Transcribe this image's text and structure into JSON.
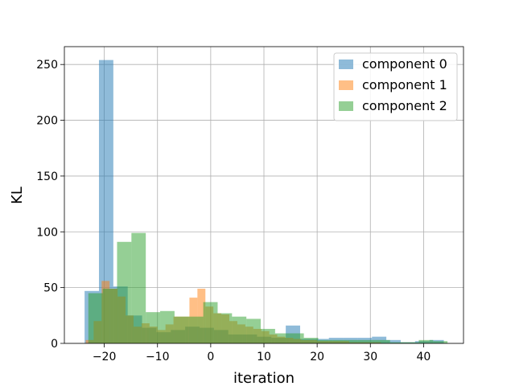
{
  "chart_data": {
    "type": "histogram",
    "title": "",
    "xlabel": "iteration",
    "ylabel": "KL",
    "xlim": [
      -27.5,
      47.5
    ],
    "ylim": [
      0,
      266
    ],
    "xticks": [
      -20,
      -10,
      0,
      10,
      20,
      30,
      40
    ],
    "xtick_labels": [
      "−20",
      "−10",
      "0",
      "10",
      "20",
      "30",
      "40"
    ],
    "yticks": [
      0,
      50,
      100,
      150,
      200,
      250
    ],
    "ytick_labels": [
      "0",
      "50",
      "100",
      "150",
      "200",
      "250"
    ],
    "grid": true,
    "legend": {
      "position": "top-right"
    },
    "series": [
      {
        "name": "component 0",
        "color": "#1f77b4",
        "alpha": 0.5,
        "bins": [
          {
            "x0": -23.7,
            "x1": -21.0,
            "value": 47
          },
          {
            "x0": -21.0,
            "x1": -18.3,
            "value": 254
          },
          {
            "x0": -18.3,
            "x1": -15.6,
            "value": 51
          },
          {
            "x0": -15.6,
            "x1": -12.9,
            "value": 25
          },
          {
            "x0": -12.9,
            "x1": -10.2,
            "value": 14
          },
          {
            "x0": -10.2,
            "x1": -7.5,
            "value": 10
          },
          {
            "x0": -7.5,
            "x1": -4.8,
            "value": 12
          },
          {
            "x0": -4.8,
            "x1": -2.1,
            "value": 15
          },
          {
            "x0": -2.1,
            "x1": 0.6,
            "value": 14
          },
          {
            "x0": 0.6,
            "x1": 3.3,
            "value": 12
          },
          {
            "x0": 3.3,
            "x1": 6.0,
            "value": 8
          },
          {
            "x0": 6.0,
            "x1": 8.7,
            "value": 8
          },
          {
            "x0": 8.7,
            "x1": 11.4,
            "value": 6
          },
          {
            "x0": 11.4,
            "x1": 14.1,
            "value": 5
          },
          {
            "x0": 14.1,
            "x1": 16.8,
            "value": 16
          },
          {
            "x0": 16.8,
            "x1": 19.5,
            "value": 4
          },
          {
            "x0": 19.5,
            "x1": 22.2,
            "value": 4
          },
          {
            "x0": 22.2,
            "x1": 24.9,
            "value": 5
          },
          {
            "x0": 24.9,
            "x1": 27.6,
            "value": 5
          },
          {
            "x0": 27.6,
            "x1": 30.3,
            "value": 5
          },
          {
            "x0": 30.3,
            "x1": 33.0,
            "value": 6
          },
          {
            "x0": 33.0,
            "x1": 35.7,
            "value": 3
          },
          {
            "x0": 35.7,
            "x1": 38.4,
            "value": 1
          },
          {
            "x0": 38.4,
            "x1": 41.1,
            "value": 2
          },
          {
            "x0": 41.1,
            "x1": 43.8,
            "value": 3
          }
        ]
      },
      {
        "name": "component 1",
        "color": "#ff7f0e",
        "alpha": 0.5,
        "bins": [
          {
            "x0": -23.5,
            "x1": -22.0,
            "value": 3
          },
          {
            "x0": -22.0,
            "x1": -20.5,
            "value": 20
          },
          {
            "x0": -20.5,
            "x1": -19.0,
            "value": 56
          },
          {
            "x0": -19.0,
            "x1": -17.5,
            "value": 49
          },
          {
            "x0": -17.5,
            "x1": -16.0,
            "value": 42
          },
          {
            "x0": -16.0,
            "x1": -14.5,
            "value": 25
          },
          {
            "x0": -14.5,
            "x1": -13.0,
            "value": 15
          },
          {
            "x0": -13.0,
            "x1": -11.5,
            "value": 18
          },
          {
            "x0": -11.5,
            "x1": -10.0,
            "value": 15
          },
          {
            "x0": -10.0,
            "x1": -8.5,
            "value": 12
          },
          {
            "x0": -8.5,
            "x1": -7.0,
            "value": 17
          },
          {
            "x0": -7.0,
            "x1": -5.5,
            "value": 24
          },
          {
            "x0": -5.5,
            "x1": -4.0,
            "value": 24
          },
          {
            "x0": -4.0,
            "x1": -2.5,
            "value": 41
          },
          {
            "x0": -2.5,
            "x1": -1.0,
            "value": 49
          },
          {
            "x0": -1.0,
            "x1": 0.5,
            "value": 33
          },
          {
            "x0": 0.5,
            "x1": 2.0,
            "value": 27
          },
          {
            "x0": 2.0,
            "x1": 3.5,
            "value": 26
          },
          {
            "x0": 3.5,
            "x1": 5.0,
            "value": 20
          },
          {
            "x0": 5.0,
            "x1": 6.5,
            "value": 17
          },
          {
            "x0": 6.5,
            "x1": 8.0,
            "value": 15
          },
          {
            "x0": 8.0,
            "x1": 9.5,
            "value": 13
          },
          {
            "x0": 9.5,
            "x1": 11.0,
            "value": 11
          },
          {
            "x0": 11.0,
            "x1": 12.5,
            "value": 8
          },
          {
            "x0": 12.5,
            "x1": 14.0,
            "value": 6
          },
          {
            "x0": 14.0,
            "x1": 15.5,
            "value": 5
          },
          {
            "x0": 15.5,
            "x1": 17.0,
            "value": 4
          },
          {
            "x0": 17.0,
            "x1": 18.5,
            "value": 3
          },
          {
            "x0": 18.5,
            "x1": 20.0,
            "value": 3
          },
          {
            "x0": 20.0,
            "x1": 21.5,
            "value": 2
          },
          {
            "x0": 21.5,
            "x1": 23.0,
            "value": 2
          },
          {
            "x0": 23.0,
            "x1": 24.5,
            "value": 2
          },
          {
            "x0": 24.5,
            "x1": 26.0,
            "value": 2
          },
          {
            "x0": 26.0,
            "x1": 27.5,
            "value": 1
          },
          {
            "x0": 27.5,
            "x1": 29.0,
            "value": 1
          },
          {
            "x0": 29.0,
            "x1": 30.5,
            "value": 1
          },
          {
            "x0": 30.5,
            "x1": 32.0,
            "value": 1
          }
        ]
      },
      {
        "name": "component 2",
        "color": "#2ca02c",
        "alpha": 0.5,
        "bins": [
          {
            "x0": -23.0,
            "x1": -20.3,
            "value": 45
          },
          {
            "x0": -20.3,
            "x1": -17.6,
            "value": 49
          },
          {
            "x0": -17.6,
            "x1": -14.9,
            "value": 91
          },
          {
            "x0": -14.9,
            "x1": -12.2,
            "value": 99
          },
          {
            "x0": -12.2,
            "x1": -9.5,
            "value": 28
          },
          {
            "x0": -9.5,
            "x1": -6.8,
            "value": 29
          },
          {
            "x0": -6.8,
            "x1": -4.1,
            "value": 24
          },
          {
            "x0": -4.1,
            "x1": -1.4,
            "value": 24
          },
          {
            "x0": -1.4,
            "x1": 1.3,
            "value": 37
          },
          {
            "x0": 1.3,
            "x1": 4.0,
            "value": 27
          },
          {
            "x0": 4.0,
            "x1": 6.7,
            "value": 24
          },
          {
            "x0": 6.7,
            "x1": 9.4,
            "value": 22
          },
          {
            "x0": 9.4,
            "x1": 12.1,
            "value": 13
          },
          {
            "x0": 12.1,
            "x1": 14.8,
            "value": 9
          },
          {
            "x0": 14.8,
            "x1": 17.5,
            "value": 9
          },
          {
            "x0": 17.5,
            "x1": 20.2,
            "value": 5
          },
          {
            "x0": 20.2,
            "x1": 22.9,
            "value": 3
          },
          {
            "x0": 22.9,
            "x1": 25.6,
            "value": 3
          },
          {
            "x0": 25.6,
            "x1": 28.3,
            "value": 3
          },
          {
            "x0": 28.3,
            "x1": 31.0,
            "value": 3
          },
          {
            "x0": 31.0,
            "x1": 33.7,
            "value": 3
          },
          {
            "x0": 33.7,
            "x1": 36.4,
            "value": 1
          },
          {
            "x0": 36.4,
            "x1": 39.1,
            "value": 1
          },
          {
            "x0": 39.1,
            "x1": 41.8,
            "value": 3
          },
          {
            "x0": 41.8,
            "x1": 44.5,
            "value": 2
          }
        ]
      }
    ]
  }
}
